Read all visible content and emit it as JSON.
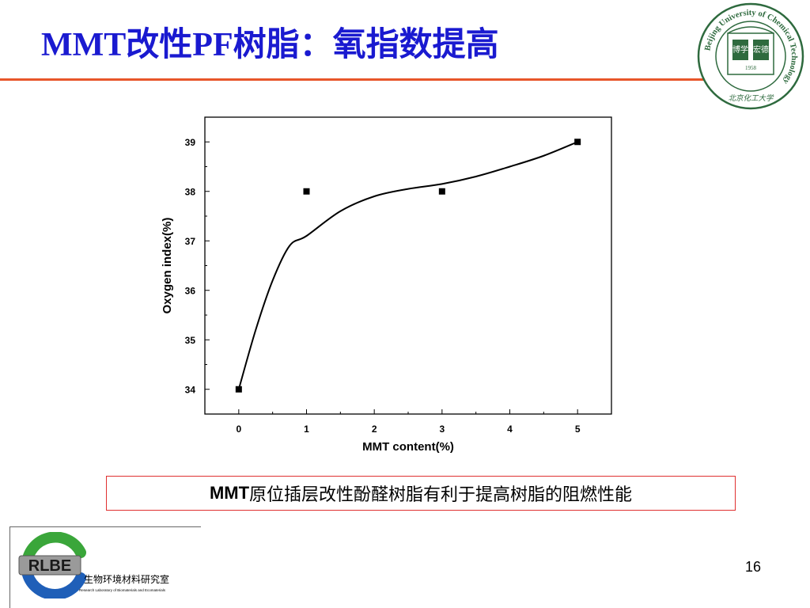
{
  "slide": {
    "title": "MMT改性PF树脂：氧指数提高",
    "callout_prefix": "MMT",
    "callout_text": "原位插层改性酚醛树脂有利于提高树脂的阻燃性能",
    "page_number": "16"
  },
  "seal": {
    "ring_text": "Beijing University of Chemical Technology",
    "inner_left": "博学",
    "inner_right": "宏德",
    "year": "1958",
    "calligraphy": "北京化工大学"
  },
  "logo": {
    "acronym": "RLBE",
    "cn_name": "生物环境材料研究室",
    "en_name": "Research Laboratory of Biomaterials and Ecomaterials"
  },
  "colors": {
    "title": "#1a1ad0",
    "rule": "#e8562a",
    "callout_border": "#e03030",
    "logo_green": "#3aa63a",
    "logo_blue": "#1f5fb8"
  },
  "chart_data": {
    "type": "scatter",
    "xlabel": "MMT content(%)",
    "ylabel": "Oxygen index(%)",
    "xlim": [
      -0.5,
      5.5
    ],
    "ylim": [
      33.5,
      39.5
    ],
    "xticks": [
      "0",
      "1",
      "2",
      "3",
      "4",
      "5"
    ],
    "yticks": [
      "34",
      "35",
      "36",
      "37",
      "38",
      "39"
    ],
    "points": [
      {
        "x": 0,
        "y": 34
      },
      {
        "x": 1,
        "y": 38
      },
      {
        "x": 3,
        "y": 38
      },
      {
        "x": 5,
        "y": 39
      }
    ],
    "fit_curve": [
      {
        "x": 0,
        "y": 34
      },
      {
        "x": 0.25,
        "y": 35.2
      },
      {
        "x": 0.5,
        "y": 36.2
      },
      {
        "x": 0.75,
        "y": 36.9
      },
      {
        "x": 1,
        "y": 37.1
      },
      {
        "x": 1.5,
        "y": 37.6
      },
      {
        "x": 2,
        "y": 37.9
      },
      {
        "x": 2.5,
        "y": 38.05
      },
      {
        "x": 3,
        "y": 38.15
      },
      {
        "x": 3.5,
        "y": 38.3
      },
      {
        "x": 4,
        "y": 38.5
      },
      {
        "x": 4.5,
        "y": 38.72
      },
      {
        "x": 5,
        "y": 39
      }
    ],
    "grid": false
  }
}
